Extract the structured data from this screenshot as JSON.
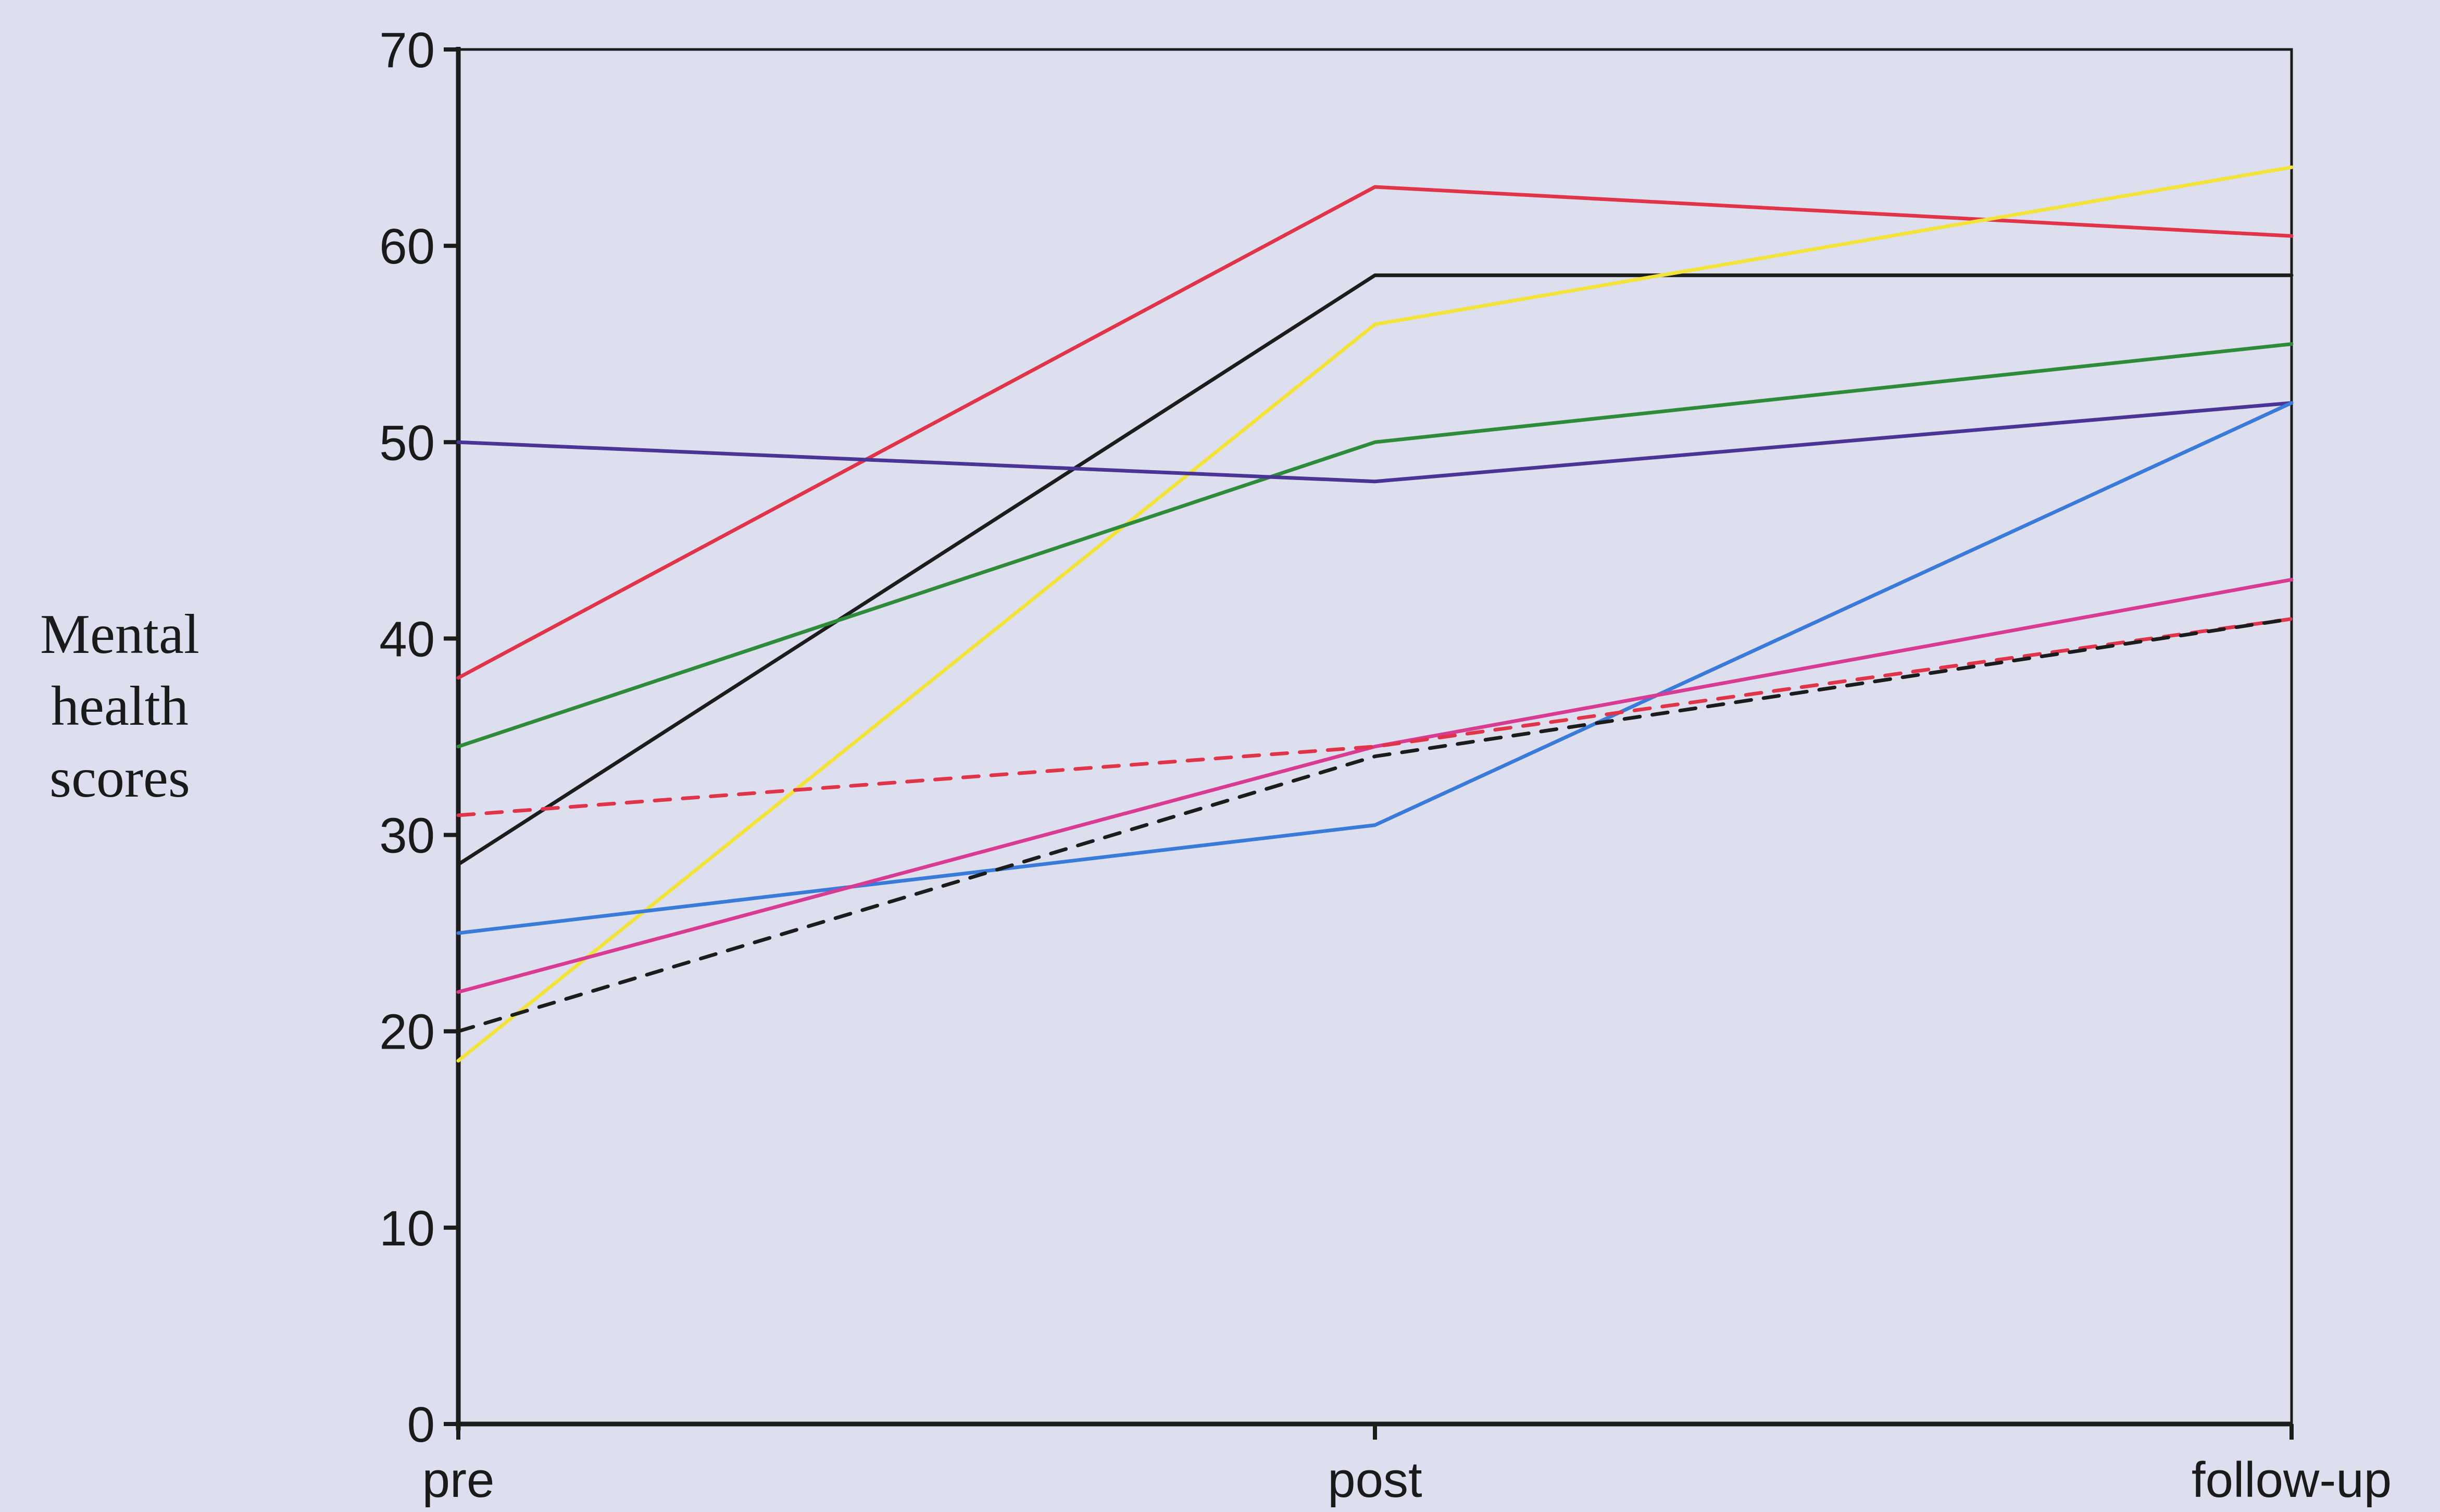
{
  "chart_data": {
    "type": "line",
    "ylabel_lines": [
      "Mental",
      "health",
      "scores"
    ],
    "xlabel": "",
    "categories": [
      "pre",
      "post",
      "follow-up"
    ],
    "ylim": [
      0,
      70
    ],
    "yticks": [
      0,
      10,
      20,
      30,
      40,
      50,
      60,
      70
    ],
    "grid": false,
    "legend": "none",
    "series": [
      {
        "color": "#e0344a",
        "dash": false,
        "values": [
          38,
          63,
          60.5
        ]
      },
      {
        "color": "#1c1c1c",
        "dash": false,
        "values": [
          28.5,
          58.5,
          58.5
        ]
      },
      {
        "color": "#f2e33a",
        "dash": false,
        "values": [
          18.5,
          56,
          64
        ]
      },
      {
        "color": "#2e8b3a",
        "dash": false,
        "values": [
          34.5,
          50,
          55
        ]
      },
      {
        "color": "#4a3596",
        "dash": false,
        "values": [
          50,
          48,
          52
        ]
      },
      {
        "color": "#3a7ad8",
        "dash": false,
        "values": [
          25,
          30.5,
          52
        ]
      },
      {
        "color": "#d83c92",
        "dash": false,
        "values": [
          22,
          34.5,
          43
        ]
      },
      {
        "color": "#e0344a",
        "dash": true,
        "values": [
          31,
          34.5,
          41
        ]
      },
      {
        "color": "#1c1c1c",
        "dash": true,
        "values": [
          20,
          34,
          41
        ]
      }
    ]
  }
}
